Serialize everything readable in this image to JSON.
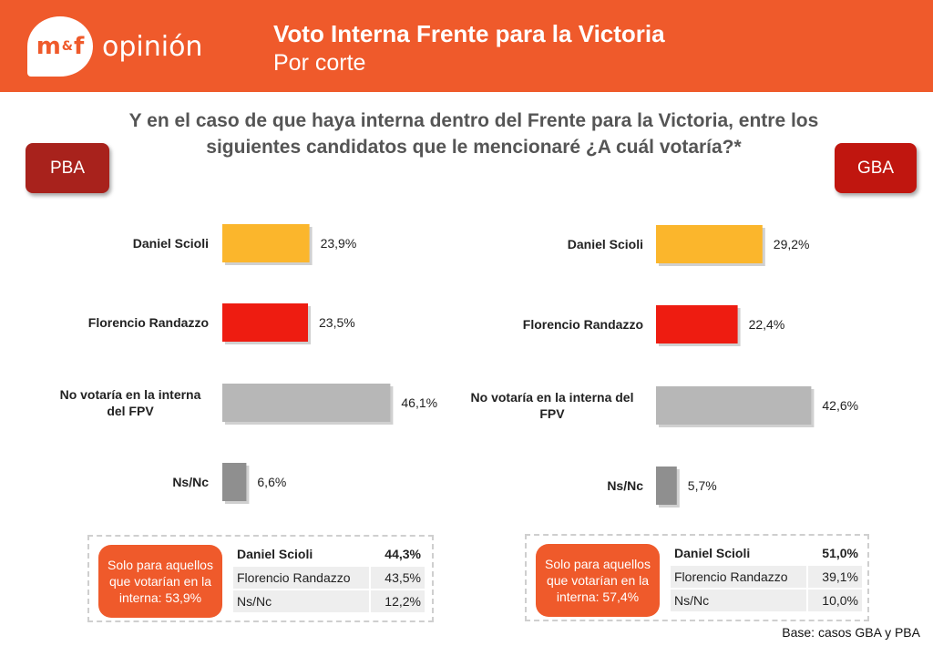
{
  "header": {
    "logo_mark": "m&f",
    "logo_word": "opinión",
    "title": "Voto Interna Frente para la Victoria",
    "subtitle": "Por corte"
  },
  "question": "Y en el caso de que haya interna dentro del Frente para la Victoria, entre los siguientes candidatos que le mencionaré ¿A cuál votaría?*",
  "tags": {
    "left": "PBA",
    "right": "GBA"
  },
  "colors": {
    "header": "#ef5a2b",
    "scioli": "#fbb62c",
    "randazzo": "#ee1c11",
    "no_votaria": "#b7b7b7",
    "nsnc": "#8f8f8f"
  },
  "chart_data": [
    {
      "type": "bar",
      "orientation": "horizontal",
      "categories": [
        "Daniel Scioli",
        "Florencio Randazzo",
        "No votaría en la interna del FPV",
        "Ns/Nc"
      ],
      "values": [
        23.9,
        23.5,
        46.1,
        6.6
      ],
      "value_labels": [
        "23,9%",
        "23,5%",
        "46,1%",
        "6,6%"
      ],
      "xlim": [
        0,
        100
      ],
      "grid": false,
      "legend": "none"
    },
    {
      "type": "bar",
      "orientation": "horizontal",
      "categories": [
        "Daniel Scioli",
        "Florencio Randazzo",
        "No votaría en la interna del FPV",
        "Ns/Nc"
      ],
      "values": [
        29.2,
        22.4,
        42.6,
        5.7
      ],
      "value_labels": [
        "29,2%",
        "22,4%",
        "42,6%",
        "5,7%"
      ],
      "xlim": [
        0,
        100
      ],
      "grid": false,
      "legend": "none"
    }
  ],
  "summary_pba": {
    "note": "Solo para aquellos que votarían en la interna: 53,9%",
    "rows": [
      {
        "name": "Daniel Scioli",
        "value": "44,3%"
      },
      {
        "name": "Florencio Randazzo",
        "value": "43,5%"
      },
      {
        "name": "Ns/Nc",
        "value": "12,2%"
      }
    ]
  },
  "summary_gba": {
    "note": "Solo para aquellos que votarían en la interna: 57,4%",
    "rows": [
      {
        "name": "Daniel Scioli",
        "value": "51,0%"
      },
      {
        "name": "Florencio Randazzo",
        "value": "39,1%"
      },
      {
        "name": "Ns/Nc",
        "value": "10,0%"
      }
    ]
  },
  "footer": "Base: casos GBA y PBA"
}
